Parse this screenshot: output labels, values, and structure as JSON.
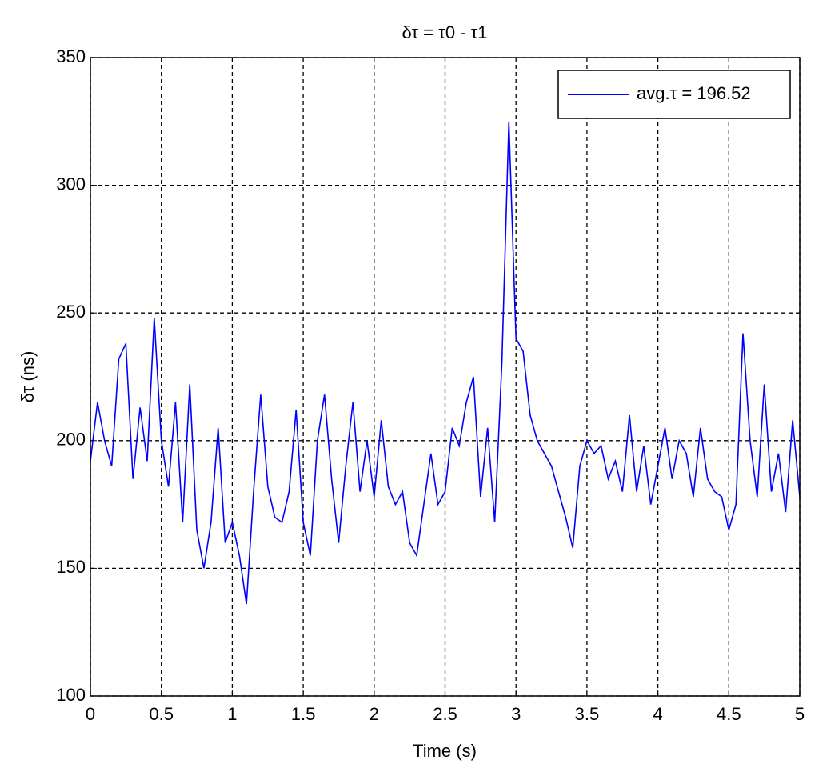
{
  "chart_data": {
    "type": "line",
    "title": "δτ = τ0 - τ1",
    "x_label": "Time (s)",
    "y_label": "δτ (ns)",
    "x": [
      0,
      0.05,
      0.1,
      0.15,
      0.2,
      0.25,
      0.3,
      0.35,
      0.4,
      0.45,
      0.5,
      0.55,
      0.6,
      0.65,
      0.7,
      0.75,
      0.8,
      0.85,
      0.9,
      0.95,
      1,
      1.05,
      1.1,
      1.15,
      1.2,
      1.25,
      1.3,
      1.35,
      1.4,
      1.45,
      1.5,
      1.55,
      1.6,
      1.65,
      1.7,
      1.75,
      1.8,
      1.85,
      1.9,
      1.95,
      2,
      2.05,
      2.1,
      2.15,
      2.2,
      2.25,
      2.3,
      2.35,
      2.4,
      2.45,
      2.5,
      2.55,
      2.6,
      2.65,
      2.7,
      2.75,
      2.8,
      2.85,
      2.9,
      2.95,
      3,
      3.05,
      3.1,
      3.15,
      3.2,
      3.25,
      3.3,
      3.35,
      3.4,
      3.45,
      3.5,
      3.55,
      3.6,
      3.65,
      3.7,
      3.75,
      3.8,
      3.85,
      3.9,
      3.95,
      4,
      4.05,
      4.1,
      4.15,
      4.2,
      4.25,
      4.3,
      4.35,
      4.4,
      4.45,
      4.5,
      4.55,
      4.6,
      4.65,
      4.7,
      4.75,
      4.8,
      4.85,
      4.9,
      4.95,
      5
    ],
    "series": [
      {
        "name": "avg.τ = 196.52",
        "color": "#0000ff",
        "values": [
          192,
          215,
          200,
          190,
          232,
          238,
          185,
          213,
          192,
          248,
          200,
          182,
          215,
          168,
          222,
          165,
          150,
          168,
          205,
          160,
          168,
          155,
          136,
          180,
          218,
          182,
          170,
          168,
          180,
          212,
          168,
          155,
          200,
          218,
          185,
          160,
          190,
          215,
          180,
          200,
          178,
          208,
          182,
          175,
          180,
          160,
          155,
          175,
          195,
          175,
          180,
          205,
          198,
          215,
          225,
          178,
          205,
          168,
          230,
          325,
          240,
          235,
          210,
          200,
          195,
          190,
          180,
          170,
          158,
          190,
          200,
          195,
          198,
          185,
          192,
          180,
          210,
          180,
          198,
          175,
          190,
          205,
          185,
          200,
          195,
          178,
          205,
          185,
          180,
          178,
          165,
          175,
          242,
          200,
          178,
          222,
          180,
          195,
          172,
          208,
          178
        ]
      }
    ],
    "xlim": [
      0,
      5
    ],
    "xticks": [
      0,
      0.5,
      1,
      1.5,
      2,
      2.5,
      3,
      3.5,
      4,
      4.5,
      5
    ],
    "ylim": [
      100,
      350
    ],
    "yticks": [
      100,
      150,
      200,
      250,
      300,
      350
    ],
    "grid": true,
    "legend": "northeast"
  }
}
